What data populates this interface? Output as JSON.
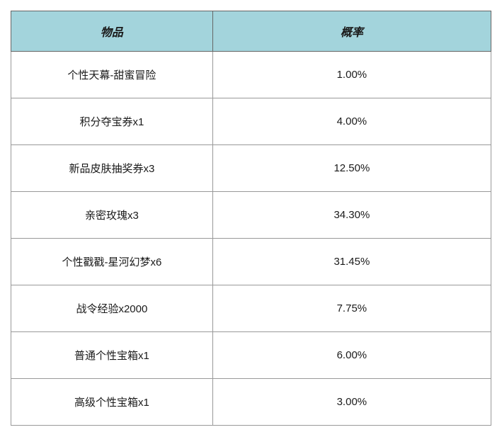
{
  "table": {
    "type": "table",
    "header_bg_color": "#a3d4dc",
    "header_text_color": "#1a1a1a",
    "header_font_style": "italic",
    "header_font_weight": "bold",
    "header_fontsize": 16,
    "cell_bg_color": "#ffffff",
    "cell_text_color": "#1a1a1a",
    "cell_fontsize": 15,
    "border_color": "#999999",
    "columns": [
      {
        "label": "物品",
        "width": "42%",
        "align": "center"
      },
      {
        "label": "概率",
        "width": "58%",
        "align": "center"
      }
    ],
    "rows": [
      {
        "item": "个性天幕-甜蜜冒险",
        "rate": "1.00%"
      },
      {
        "item": "积分夺宝券x1",
        "rate": "4.00%"
      },
      {
        "item": "新品皮肤抽奖券x3",
        "rate": "12.50%"
      },
      {
        "item": "亲密玫瑰x3",
        "rate": "34.30%"
      },
      {
        "item": "个性戳戳-星河幻梦x6",
        "rate": "31.45%"
      },
      {
        "item": "战令经验x2000",
        "rate": "7.75%"
      },
      {
        "item": "普通个性宝箱x1",
        "rate": "6.00%"
      },
      {
        "item": "高级个性宝箱x1",
        "rate": "3.00%"
      }
    ]
  }
}
